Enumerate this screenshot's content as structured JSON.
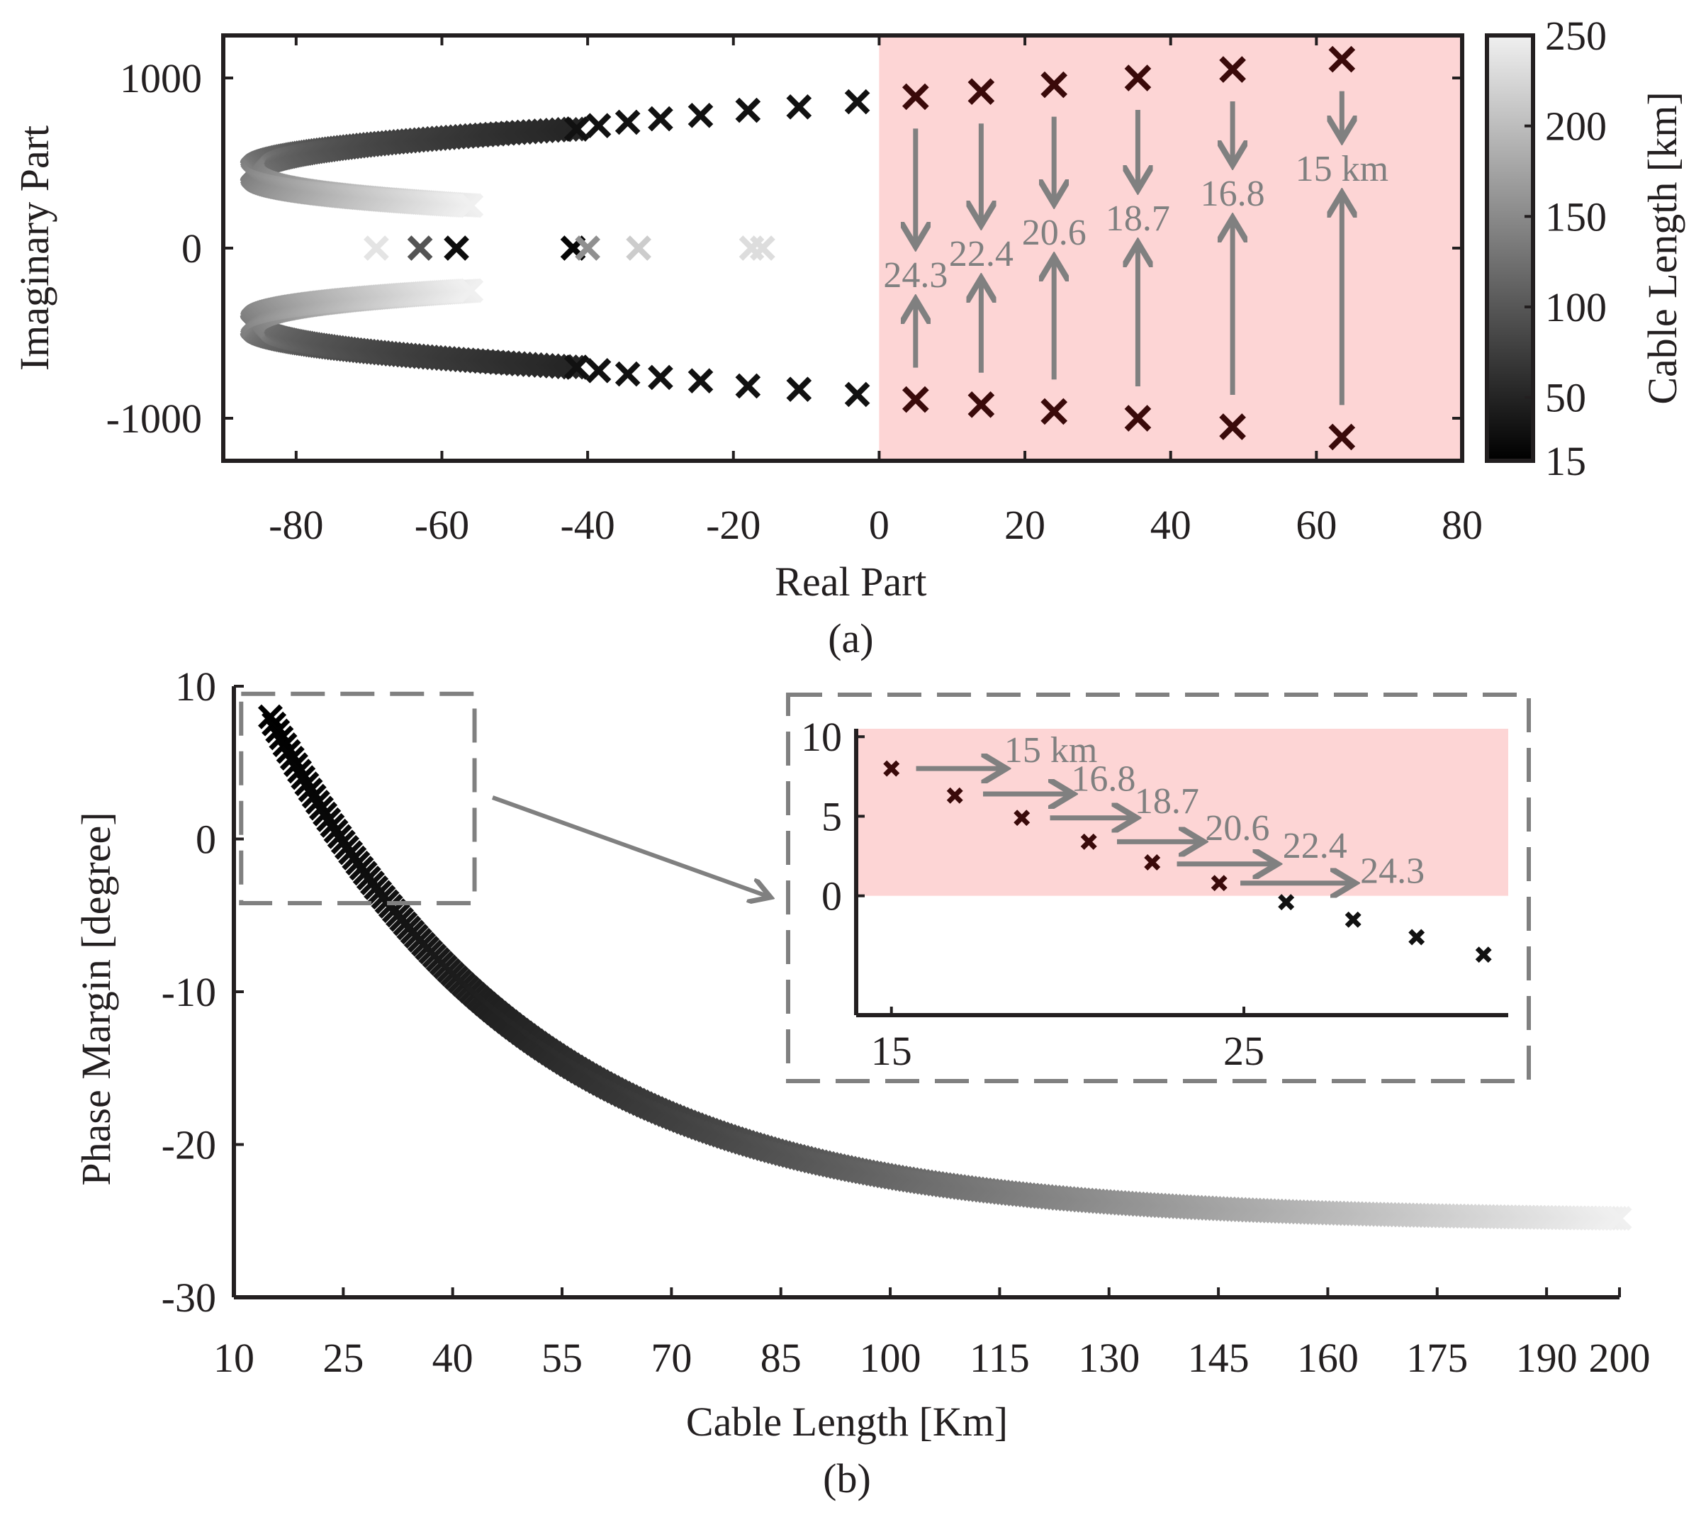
{
  "colors": {
    "axis": "#231f20",
    "shade": "#fdd5d5",
    "annotation": "#808080",
    "unstable_marker": "#3a0a0a",
    "colormap_low": "#000000",
    "colormap_high": "#f0f0f0"
  },
  "chart_data": [
    {
      "panel_label": "(a)",
      "type": "scatter",
      "title": "",
      "xlabel": "Real Part",
      "ylabel": "Imaginary Part",
      "xlim": [
        -90,
        80
      ],
      "ylim": [
        -1250,
        1250
      ],
      "xticks": [
        -80,
        -60,
        -40,
        -20,
        0,
        20,
        40,
        60,
        80
      ],
      "yticks": [
        -1000,
        0,
        1000
      ],
      "shaded_region": {
        "x": [
          0,
          80
        ],
        "meaning": "unstable right half-plane"
      },
      "colorbar": {
        "label": "Cable Length [km]",
        "range": [
          15,
          250
        ],
        "ticks": [
          15,
          50,
          100,
          150,
          200,
          250
        ]
      },
      "marker": "x",
      "unstable_poles": [
        {
          "cable_km": "24.3",
          "re": 5,
          "im_upper": 890,
          "im_lower": -890
        },
        {
          "cable_km": "22.4",
          "re": 14,
          "im_upper": 920,
          "im_lower": -920
        },
        {
          "cable_km": "20.6",
          "re": 24,
          "im_upper": 960,
          "im_lower": -960
        },
        {
          "cable_km": "18.7",
          "re": 35.5,
          "im_upper": 1000,
          "im_lower": -1000
        },
        {
          "cable_km": "16.8",
          "re": 48.5,
          "im_upper": 1050,
          "im_lower": -1050
        },
        {
          "cable_km": "15 km",
          "re": 63.5,
          "im_upper": 1110,
          "im_lower": -1110
        }
      ],
      "stable_dark_poles": [
        {
          "re": -3,
          "im": 860
        },
        {
          "re": -11,
          "im": 830
        },
        {
          "re": -18,
          "im": 810
        },
        {
          "re": -24.5,
          "im": 780
        },
        {
          "re": -30,
          "im": 760
        },
        {
          "re": -34.5,
          "im": 740
        },
        {
          "re": -38.5,
          "im": 720
        },
        {
          "re": -41.5,
          "im": 700
        }
      ],
      "branch_curve": {
        "description": "complex pole pairs moving left then curling back as cable length grows",
        "start": {
          "re": -42,
          "im": 700
        },
        "leftmost": {
          "re": -86,
          "im": 450
        },
        "end": {
          "re": -56,
          "im": 250
        }
      },
      "real_axis_poles": [
        {
          "re": -69,
          "im": 0
        },
        {
          "re": -63,
          "im": 0
        },
        {
          "re": -58,
          "im": 0
        },
        {
          "re": -42,
          "im": 0
        },
        {
          "re": -40,
          "im": 0
        },
        {
          "re": -33,
          "im": 0
        },
        {
          "re": -17.5,
          "im": 0
        },
        {
          "re": -16,
          "im": 0
        }
      ]
    },
    {
      "panel_label": "(b)",
      "type": "scatter",
      "title": "",
      "xlabel": "Cable Length [Km]",
      "ylabel": "Phase Margin [degree]",
      "xlim": [
        10,
        200
      ],
      "ylim": [
        -30,
        10
      ],
      "xticks": [
        10,
        25,
        40,
        55,
        70,
        85,
        100,
        115,
        130,
        145,
        160,
        175,
        190,
        200
      ],
      "yticks": [
        -30,
        -20,
        -10,
        0,
        10
      ],
      "marker": "x",
      "curve": {
        "model": "pm = -25 + 33*exp(-(L-15)/35)",
        "x_start": 15,
        "x_end": 200,
        "step": 0.5
      },
      "zoom_box": {
        "x": [
          11,
          43
        ],
        "y": [
          -4.2,
          9.5
        ]
      },
      "inset": {
        "xlim": [
          14,
          32.5
        ],
        "ylim": [
          -7.5,
          10.5
        ],
        "xticks": [
          15,
          25
        ],
        "yticks": [
          0,
          5,
          10
        ],
        "shaded_region": {
          "x": [
            14,
            32.5
          ],
          "y": [
            0,
            10.5
          ]
        },
        "points": [
          {
            "x": 15,
            "y": 8
          },
          {
            "x": 16.8,
            "y": 6.3
          },
          {
            "x": 18.7,
            "y": 4.9
          },
          {
            "x": 20.6,
            "y": 3.4
          },
          {
            "x": 22.4,
            "y": 2.1
          },
          {
            "x": 24.3,
            "y": 0.8
          },
          {
            "x": 26.2,
            "y": -0.4
          },
          {
            "x": 28.1,
            "y": -1.5
          },
          {
            "x": 29.9,
            "y": -2.6
          },
          {
            "x": 31.8,
            "y": -3.7
          }
        ],
        "annotations": [
          {
            "text": "15 km",
            "arrow_from": 15.7,
            "arrow_to": 18.2,
            "arrow_y": 8.0,
            "text_x": 18.2,
            "text_y": 8.4
          },
          {
            "text": "16.8",
            "arrow_from": 17.6,
            "arrow_to": 20.1,
            "arrow_y": 6.4,
            "text_x": 20.1,
            "text_y": 6.6
          },
          {
            "text": "18.7",
            "arrow_from": 19.5,
            "arrow_to": 21.9,
            "arrow_y": 4.9,
            "text_x": 21.9,
            "text_y": 5.2
          },
          {
            "text": "20.6",
            "arrow_from": 21.4,
            "arrow_to": 23.8,
            "arrow_y": 3.4,
            "text_x": 23.9,
            "text_y": 3.5
          },
          {
            "text": "22.4",
            "arrow_from": 23.1,
            "arrow_to": 25.9,
            "arrow_y": 2.0,
            "text_x": 26.1,
            "text_y": 2.4
          },
          {
            "text": "24.3",
            "arrow_from": 24.9,
            "arrow_to": 28.1,
            "arrow_y": 0.8,
            "text_x": 28.3,
            "text_y": 0.8
          }
        ]
      }
    }
  ]
}
